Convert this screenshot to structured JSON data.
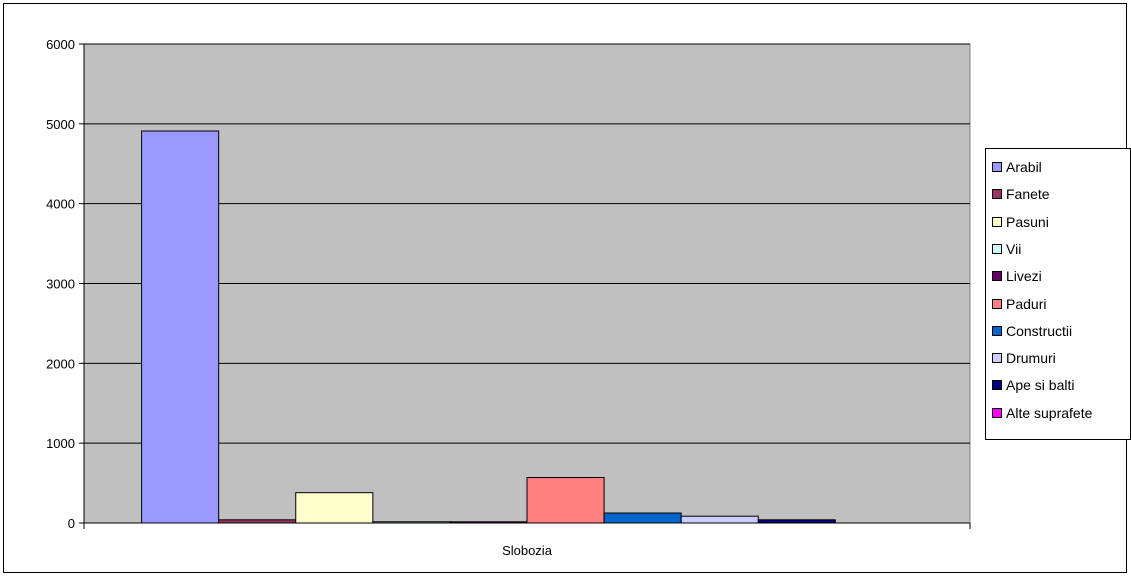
{
  "chart_data": {
    "type": "bar",
    "categories": [
      "Slobozia"
    ],
    "series": [
      {
        "name": "Arabil",
        "values": [
          4910
        ],
        "color": "#9999ff"
      },
      {
        "name": "Fanete",
        "values": [
          40
        ],
        "color": "#993366"
      },
      {
        "name": "Pasuni",
        "values": [
          380
        ],
        "color": "#ffffcc"
      },
      {
        "name": "Vii",
        "values": [
          15
        ],
        "color": "#ccffff"
      },
      {
        "name": "Livezi",
        "values": [
          15
        ],
        "color": "#660066"
      },
      {
        "name": "Paduri",
        "values": [
          570
        ],
        "color": "#ff8080"
      },
      {
        "name": "Constructii",
        "values": [
          125
        ],
        "color": "#0066cc"
      },
      {
        "name": "Drumuri",
        "values": [
          85
        ],
        "color": "#ccccff"
      },
      {
        "name": "Ape si balti",
        "values": [
          40
        ],
        "color": "#000080"
      },
      {
        "name": "Alte suprafete",
        "values": [
          0
        ],
        "color": "#ff00ff"
      }
    ],
    "y_ticks": [
      "0",
      "1000",
      "2000",
      "3000",
      "4000",
      "5000",
      "6000"
    ],
    "ylim": [
      0,
      6000
    ],
    "grid": true,
    "legend_position": "right",
    "plot_background": "#c0c0c0"
  }
}
